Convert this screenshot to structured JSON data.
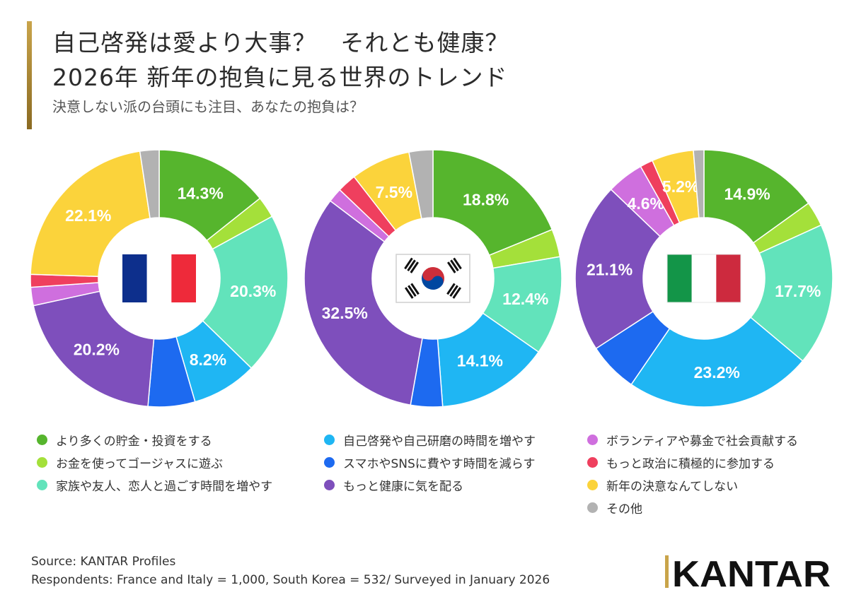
{
  "title": {
    "line1": "自己啓発は愛より大事？　それとも健康？",
    "line2": "2026年 新年の抱負に見る世界のトレンド",
    "subtitle": "決意しない派の台頭にも注目、あなたの抱負は？"
  },
  "colors": {
    "savings": "#56b52d",
    "luxury": "#a4e03a",
    "family": "#62e3bb",
    "selfdev": "#1fb6f3",
    "phone": "#1d6af0",
    "health": "#7e4fbc",
    "volunteer": "#cf6fde",
    "politics": "#ef3f5e",
    "none": "#fbd33b",
    "other": "#b2b2b2"
  },
  "chart_data": [
    {
      "type": "pie",
      "country": "France",
      "flag": "france-flag",
      "title": "",
      "slices": [
        {
          "key": "savings",
          "value": 14.3,
          "label": "14.3%"
        },
        {
          "key": "luxury",
          "value": 2.7,
          "label": ""
        },
        {
          "key": "family",
          "value": 20.3,
          "label": "20.3%"
        },
        {
          "key": "selfdev",
          "value": 8.2,
          "label": "8.2%"
        },
        {
          "key": "phone",
          "value": 5.9,
          "label": ""
        },
        {
          "key": "health",
          "value": 20.2,
          "label": "20.2%"
        },
        {
          "key": "volunteer",
          "value": 2.3,
          "label": ""
        },
        {
          "key": "politics",
          "value": 1.6,
          "label": ""
        },
        {
          "key": "none",
          "value": 22.1,
          "label": "22.1%"
        },
        {
          "key": "other",
          "value": 2.4,
          "label": ""
        }
      ]
    },
    {
      "type": "pie",
      "country": "South Korea",
      "flag": "south-korea-flag",
      "title": "",
      "slices": [
        {
          "key": "savings",
          "value": 18.8,
          "label": "18.8%"
        },
        {
          "key": "luxury",
          "value": 3.5,
          "label": ""
        },
        {
          "key": "family",
          "value": 12.4,
          "label": "12.4%"
        },
        {
          "key": "selfdev",
          "value": 14.1,
          "label": "14.1%"
        },
        {
          "key": "phone",
          "value": 4.0,
          "label": ""
        },
        {
          "key": "health",
          "value": 32.5,
          "label": "32.5%"
        },
        {
          "key": "volunteer",
          "value": 1.8,
          "label": ""
        },
        {
          "key": "politics",
          "value": 2.4,
          "label": ""
        },
        {
          "key": "none",
          "value": 7.5,
          "label": "7.5%"
        },
        {
          "key": "other",
          "value": 3.0,
          "label": ""
        }
      ]
    },
    {
      "type": "pie",
      "country": "Italy",
      "flag": "italy-flag",
      "title": "",
      "slices": [
        {
          "key": "savings",
          "value": 14.9,
          "label": "14.9%"
        },
        {
          "key": "luxury",
          "value": 3.1,
          "label": ""
        },
        {
          "key": "family",
          "value": 17.7,
          "label": "17.7%"
        },
        {
          "key": "selfdev",
          "value": 23.2,
          "label": "23.2%"
        },
        {
          "key": "phone",
          "value": 6.2,
          "label": ""
        },
        {
          "key": "health",
          "value": 21.1,
          "label": "21.1%"
        },
        {
          "key": "volunteer",
          "value": 4.6,
          "label": "4.6%"
        },
        {
          "key": "politics",
          "value": 1.6,
          "label": ""
        },
        {
          "key": "none",
          "value": 5.2,
          "label": "5.2%"
        },
        {
          "key": "other",
          "value": 1.3,
          "label": ""
        }
      ]
    }
  ],
  "legend": {
    "col1": [
      {
        "key": "savings",
        "label": "より多くの貯金・投資をする"
      },
      {
        "key": "luxury",
        "label": "お金を使ってゴージャスに遊ぶ"
      },
      {
        "key": "family",
        "label": "家族や友人、恋人と過ごす時間を増やす"
      }
    ],
    "col2": [
      {
        "key": "selfdev",
        "label": "自己啓発や自己研磨の時間を増やす"
      },
      {
        "key": "phone",
        "label": "スマホやSNSに費やす時間を減らす"
      },
      {
        "key": "health",
        "label": "もっと健康に気を配る"
      }
    ],
    "col3": [
      {
        "key": "volunteer",
        "label": "ボランティアや募金で社会貢献する"
      },
      {
        "key": "politics",
        "label": "もっと政治に積極的に参加する"
      },
      {
        "key": "none",
        "label": "新年の決意なんてしない"
      },
      {
        "key": "other",
        "label": "その他"
      }
    ]
  },
  "footer": {
    "source": "Source: KANTAR Profiles",
    "respondents": "Respondents: France and Italy = 1,000, South Korea = 532/ Surveyed in January 2026",
    "logo_text": "KANTAR"
  }
}
